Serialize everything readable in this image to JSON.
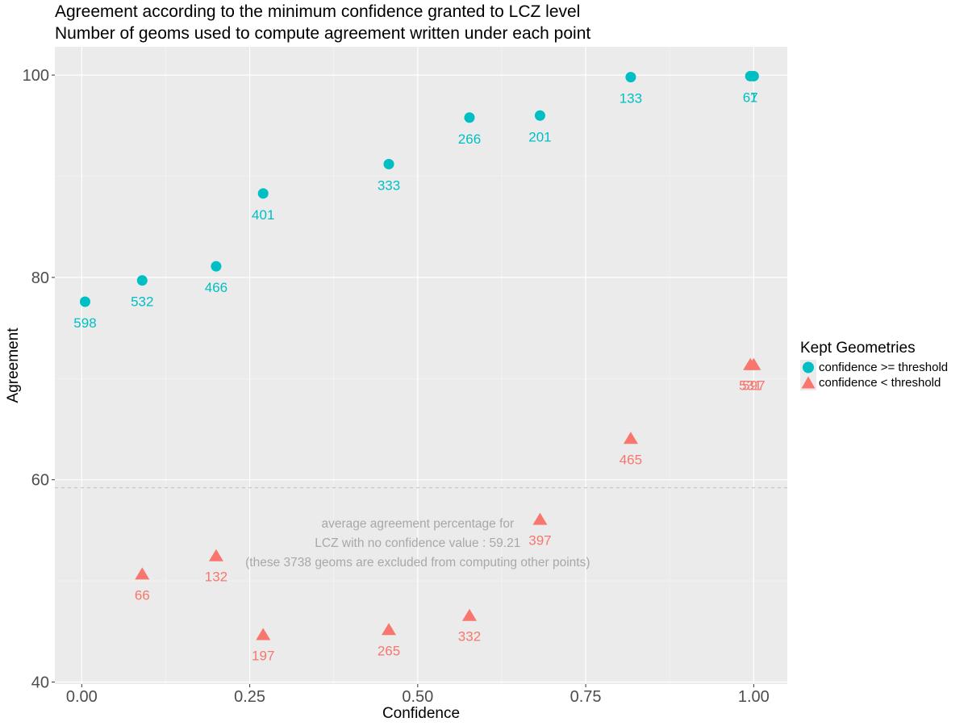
{
  "chart_data": {
    "type": "scatter",
    "title": "Agreement according to the minimum confidence granted to LCZ level",
    "subtitle": "Number of geoms used to compute agreement written under each point",
    "xlabel": "Confidence",
    "ylabel": "Agreement",
    "xlim": [
      -0.04,
      1.05
    ],
    "ylim": [
      39.8,
      102.8
    ],
    "x_ticks": [
      0.0,
      0.25,
      0.5,
      0.75,
      1.0
    ],
    "x_tick_labels": [
      "0.00",
      "0.25",
      "0.50",
      "0.75",
      "1.00"
    ],
    "y_ticks": [
      40,
      60,
      80,
      100
    ],
    "y_tick_labels": [
      "40",
      "60",
      "80",
      "100"
    ],
    "grid": true,
    "legend_position": "right",
    "legend_title": "Kept Geometries",
    "series": [
      {
        "name": "confidence >= threshold",
        "color": "#00BFC4",
        "marker": "circle",
        "points": [
          {
            "x": 0.005,
            "y": 77.6,
            "label": "598"
          },
          {
            "x": 0.09,
            "y": 79.7,
            "label": "532"
          },
          {
            "x": 0.2,
            "y": 81.1,
            "label": "466"
          },
          {
            "x": 0.27,
            "y": 88.3,
            "label": "401"
          },
          {
            "x": 0.457,
            "y": 91.2,
            "label": "333"
          },
          {
            "x": 0.577,
            "y": 95.8,
            "label": "266"
          },
          {
            "x": 0.682,
            "y": 96.0,
            "label": "201"
          },
          {
            "x": 0.817,
            "y": 99.8,
            "label": "133"
          },
          {
            "x": 0.995,
            "y": 99.9,
            "label": "67"
          },
          {
            "x": 1.0,
            "y": 99.9,
            "label": "1"
          }
        ]
      },
      {
        "name": "confidence < threshold",
        "color": "#F8766D",
        "marker": "triangle",
        "points": [
          {
            "x": 0.09,
            "y": 50.7,
            "label": "66"
          },
          {
            "x": 0.2,
            "y": 52.5,
            "label": "132"
          },
          {
            "x": 0.27,
            "y": 44.7,
            "label": "197"
          },
          {
            "x": 0.457,
            "y": 45.2,
            "label": "265"
          },
          {
            "x": 0.577,
            "y": 46.6,
            "label": "332"
          },
          {
            "x": 0.682,
            "y": 56.1,
            "label": "397"
          },
          {
            "x": 0.817,
            "y": 64.1,
            "label": "465"
          },
          {
            "x": 0.995,
            "y": 71.4,
            "label": "531"
          },
          {
            "x": 1.0,
            "y": 71.4,
            "label": "597"
          }
        ]
      }
    ],
    "reference_line": {
      "y": 59.21,
      "style": "dashed",
      "color": "#C8C8C8"
    },
    "annotation": {
      "lines": [
        "average agreement percentage for",
        "LCZ with no confidence value : 59.21",
        "(these 3738 geoms are excluded from computing other points)"
      ],
      "color": "#A8A8A8",
      "anchor": {
        "x": 0.5,
        "y": 55.9
      }
    }
  }
}
